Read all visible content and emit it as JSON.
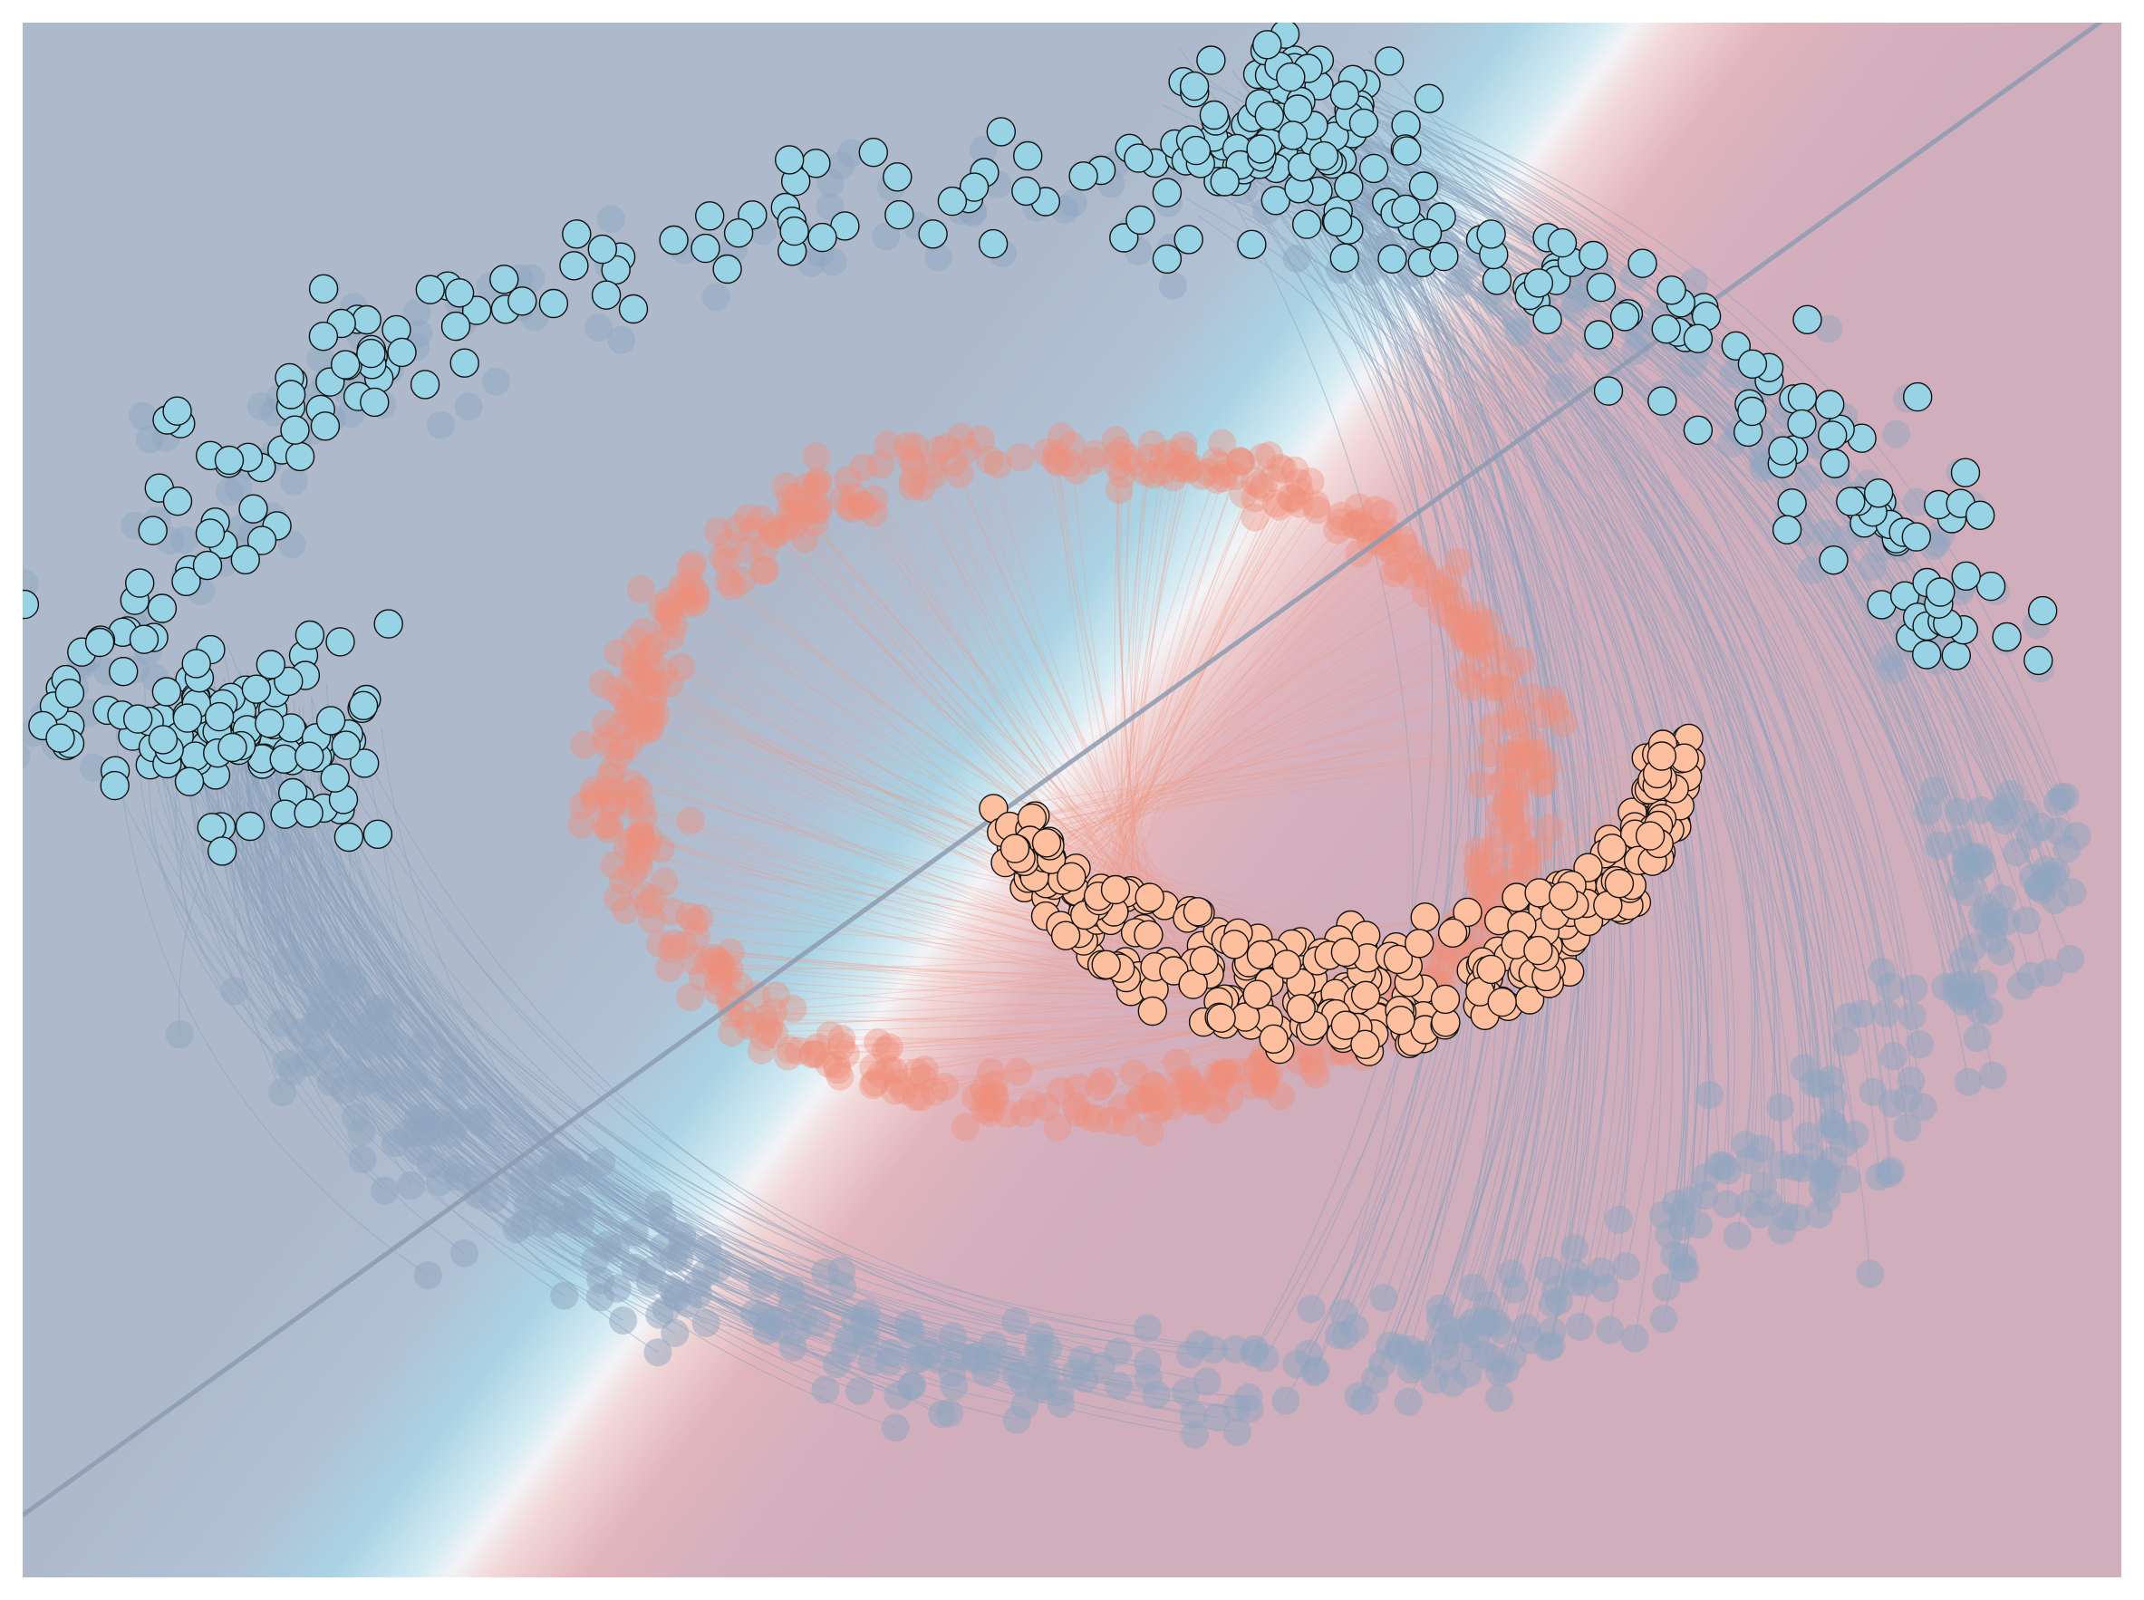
{
  "chart_data": {
    "type": "scatter",
    "title": "",
    "xlabel": "",
    "ylabel": "",
    "axes_visible": false,
    "grid": false,
    "legend": "none",
    "xlim": [
      -1.0,
      1.0
    ],
    "ylim": [
      -1.0,
      1.0
    ],
    "decision_boundary": {
      "slope": 0.97,
      "intercept": 0.05
    },
    "background": {
      "colormap": [
        "#4a6fa5",
        "#a8d8ea",
        "#ffffff",
        "#f4a3a8",
        "#b35a7a"
      ],
      "region_a_color": "#aebacb",
      "region_b_color": "#d1aebc"
    },
    "colors": {
      "class_blue": "#97d3e4",
      "class_orange": "#fdbf9e",
      "ghost_blue": "#8fa6c0",
      "ghost_orange": "#f08e7a",
      "ghost_cyan": "#6bb5d6",
      "boundary": "#8d9bb2",
      "marker_edge": "#111111"
    },
    "series": [
      {
        "kind": "transformed",
        "class": "blue",
        "shape": "arc",
        "center": [
          -0.02,
          -0.05
        ],
        "radius": [
          0.93,
          0.84
        ],
        "angle_range": [
          15,
          172
        ],
        "count": 240,
        "noise": 0.045
      },
      {
        "kind": "transformed",
        "class": "blue",
        "shape": "cluster",
        "points_center": [
          [
            -0.79,
            0.08
          ],
          [
            0.21,
            0.86
          ]
        ],
        "spread": [
          0.06,
          0.055
        ],
        "count": [
          110,
          90
        ]
      },
      {
        "kind": "transformed",
        "class": "orange",
        "shape": "crescent",
        "center": [
          0.25,
          0.05
        ],
        "radius": [
          0.34,
          0.38
        ],
        "angle_range": [
          195,
          365
        ],
        "count": 360
      },
      {
        "kind": "original",
        "class": "orange",
        "shape": "ring",
        "center": [
          0.0,
          0.03
        ],
        "radius": [
          0.43,
          0.42
        ],
        "count": 560,
        "noise": 0.04
      },
      {
        "kind": "original",
        "class": "blue",
        "shape": "lower-arc",
        "center": [
          0.06,
          0.08
        ],
        "radius": [
          0.86,
          0.82
        ],
        "angle_range": [
          200,
          355
        ],
        "count": 420,
        "noise": 0.05
      }
    ]
  }
}
